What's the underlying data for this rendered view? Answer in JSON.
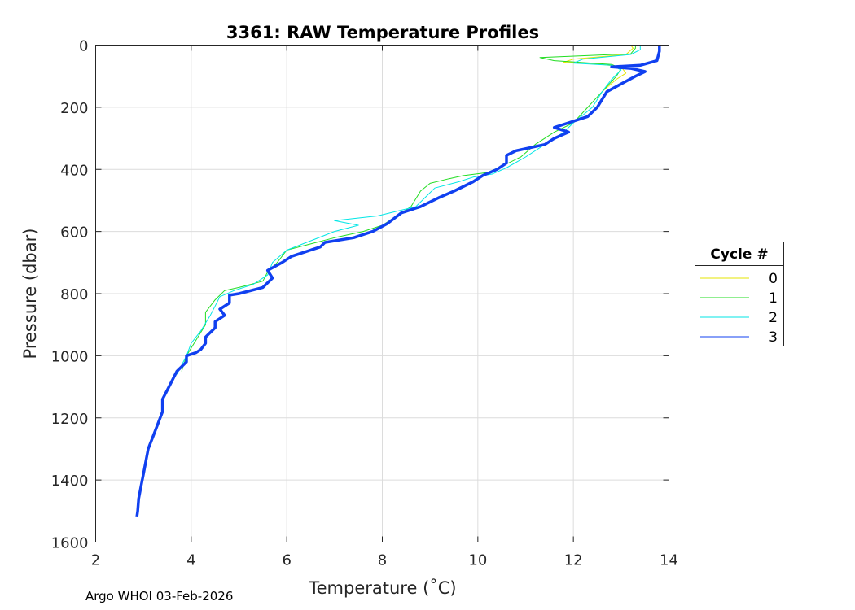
{
  "footer_text": "Argo WHOI 03-Feb-2026",
  "chart_data": {
    "type": "line",
    "title": "3361: RAW Temperature Profiles",
    "xlabel": "Temperature (˚C)",
    "ylabel": "Pressure (dbar)",
    "xlim": [
      2,
      14
    ],
    "ylim": [
      0,
      1600
    ],
    "y_reversed": true,
    "xticks": [
      2,
      4,
      6,
      8,
      10,
      12,
      14
    ],
    "yticks": [
      0,
      200,
      400,
      600,
      800,
      1000,
      1200,
      1400,
      1600
    ],
    "grid": true,
    "legend": {
      "title": "Cycle #",
      "position": "right-outside"
    },
    "series": [
      {
        "name": "0",
        "color": "#e6e600",
        "width": 1,
        "points": [
          [
            13.2,
            0
          ],
          [
            13.25,
            10
          ],
          [
            13.1,
            30
          ],
          [
            12.0,
            45
          ],
          [
            11.8,
            55
          ],
          [
            12.6,
            62
          ],
          [
            13.0,
            70
          ],
          [
            13.1,
            90
          ],
          [
            12.9,
            110
          ],
          [
            12.6,
            150
          ]
        ]
      },
      {
        "name": "1",
        "color": "#22dd22",
        "width": 1,
        "points": [
          [
            13.3,
            0
          ],
          [
            13.3,
            10
          ],
          [
            13.2,
            28
          ],
          [
            11.3,
            40
          ],
          [
            11.6,
            50
          ],
          [
            12.8,
            62
          ],
          [
            13.0,
            75
          ],
          [
            12.9,
            100
          ],
          [
            12.6,
            150
          ],
          [
            12.3,
            200
          ],
          [
            12.0,
            250
          ],
          [
            11.6,
            280
          ],
          [
            11.2,
            320
          ],
          [
            10.9,
            360
          ],
          [
            10.5,
            390
          ],
          [
            10.2,
            410
          ],
          [
            9.7,
            420
          ],
          [
            9.4,
            430
          ],
          [
            9.0,
            445
          ],
          [
            8.8,
            470
          ],
          [
            8.6,
            520
          ],
          [
            8.0,
            580
          ],
          [
            7.6,
            600
          ],
          [
            7.0,
            620
          ],
          [
            6.5,
            640
          ],
          [
            6.0,
            660
          ],
          [
            5.8,
            700
          ],
          [
            5.6,
            730
          ],
          [
            5.5,
            760
          ],
          [
            5.0,
            780
          ],
          [
            4.7,
            790
          ],
          [
            4.5,
            820
          ],
          [
            4.4,
            840
          ],
          [
            4.3,
            860
          ],
          [
            4.3,
            900
          ],
          [
            4.1,
            950
          ],
          [
            3.9,
            1000
          ],
          [
            3.8,
            1050
          ]
        ]
      },
      {
        "name": "2",
        "color": "#00e6e6",
        "width": 1,
        "points": [
          [
            13.4,
            0
          ],
          [
            13.4,
            15
          ],
          [
            13.2,
            30
          ],
          [
            12.2,
            45
          ],
          [
            12.0,
            58
          ],
          [
            12.8,
            65
          ],
          [
            13.0,
            80
          ],
          [
            12.8,
            110
          ],
          [
            12.6,
            150
          ],
          [
            12.4,
            200
          ],
          [
            12.0,
            250
          ],
          [
            11.8,
            280
          ],
          [
            11.4,
            320
          ],
          [
            11.0,
            360
          ],
          [
            10.6,
            395
          ],
          [
            10.3,
            415
          ],
          [
            9.9,
            425
          ],
          [
            9.6,
            440
          ],
          [
            9.1,
            460
          ],
          [
            8.9,
            490
          ],
          [
            8.7,
            520
          ],
          [
            7.9,
            550
          ],
          [
            7.0,
            565
          ],
          [
            7.5,
            580
          ],
          [
            7.0,
            600
          ],
          [
            6.5,
            630
          ],
          [
            6.0,
            660
          ],
          [
            5.7,
            700
          ],
          [
            5.6,
            740
          ],
          [
            5.3,
            770
          ],
          [
            4.9,
            790
          ],
          [
            4.6,
            810
          ],
          [
            4.5,
            840
          ],
          [
            4.4,
            870
          ],
          [
            4.2,
            920
          ],
          [
            4.0,
            960
          ],
          [
            3.9,
            1000
          ],
          [
            3.7,
            1060
          ]
        ]
      },
      {
        "name": "3",
        "color": "#1040f0",
        "width": 3.5,
        "points": [
          [
            13.8,
            0
          ],
          [
            13.8,
            20
          ],
          [
            13.75,
            50
          ],
          [
            13.4,
            65
          ],
          [
            12.8,
            70
          ],
          [
            13.2,
            75
          ],
          [
            13.5,
            85
          ],
          [
            13.3,
            100
          ],
          [
            13.0,
            125
          ],
          [
            12.7,
            150
          ],
          [
            12.5,
            200
          ],
          [
            12.3,
            230
          ],
          [
            11.9,
            250
          ],
          [
            11.6,
            265
          ],
          [
            11.9,
            280
          ],
          [
            11.6,
            300
          ],
          [
            11.4,
            320
          ],
          [
            10.8,
            340
          ],
          [
            10.6,
            355
          ],
          [
            10.6,
            380
          ],
          [
            10.4,
            400
          ],
          [
            10.1,
            420
          ],
          [
            9.9,
            440
          ],
          [
            9.5,
            470
          ],
          [
            9.2,
            490
          ],
          [
            8.8,
            520
          ],
          [
            8.4,
            540
          ],
          [
            8.1,
            575
          ],
          [
            7.8,
            600
          ],
          [
            7.4,
            620
          ],
          [
            6.8,
            635
          ],
          [
            6.7,
            650
          ],
          [
            6.4,
            665
          ],
          [
            6.1,
            680
          ],
          [
            5.9,
            700
          ],
          [
            5.6,
            725
          ],
          [
            5.7,
            750
          ],
          [
            5.5,
            780
          ],
          [
            5.0,
            800
          ],
          [
            4.8,
            805
          ],
          [
            4.8,
            830
          ],
          [
            4.6,
            850
          ],
          [
            4.7,
            870
          ],
          [
            4.5,
            890
          ],
          [
            4.5,
            910
          ],
          [
            4.3,
            940
          ],
          [
            4.3,
            960
          ],
          [
            4.2,
            980
          ],
          [
            4.1,
            990
          ],
          [
            3.9,
            1000
          ],
          [
            3.9,
            1020
          ],
          [
            3.7,
            1050
          ],
          [
            3.6,
            1080
          ],
          [
            3.5,
            1110
          ],
          [
            3.4,
            1140
          ],
          [
            3.4,
            1180
          ],
          [
            3.3,
            1220
          ],
          [
            3.2,
            1260
          ],
          [
            3.1,
            1300
          ],
          [
            3.05,
            1340
          ],
          [
            3.0,
            1380
          ],
          [
            2.95,
            1420
          ],
          [
            2.9,
            1460
          ],
          [
            2.88,
            1500
          ],
          [
            2.86,
            1520
          ]
        ]
      }
    ]
  }
}
